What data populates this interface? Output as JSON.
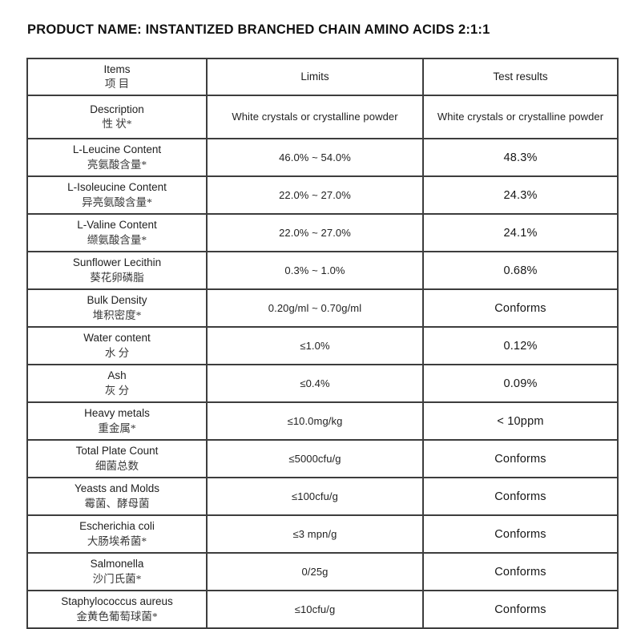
{
  "page": {
    "title": "PRODUCT NAME: INSTANTIZED BRANCHED CHAIN AMINO ACIDS 2:1:1"
  },
  "colors": {
    "text": "#1f1f1f",
    "border": "#3d3d3d",
    "background": "#ffffff"
  },
  "table": {
    "header": {
      "items_en": "Items",
      "items_zh": "项 目",
      "limits": "Limits",
      "test_results": "Test results"
    },
    "rows": [
      {
        "item_en": "Description",
        "item_zh": "性 状*",
        "limit": "White crystals or crystalline powder",
        "result": "White crystals or crystalline powder"
      },
      {
        "item_en": "L-Leucine Content",
        "item_zh": "亮氨酸含量*",
        "limit": "46.0% ~ 54.0%",
        "result": "48.3%"
      },
      {
        "item_en": "L-Isoleucine Content",
        "item_zh": "异亮氨酸含量*",
        "limit": "22.0% ~ 27.0%",
        "result": "24.3%"
      },
      {
        "item_en": "L-Valine Content",
        "item_zh": "缬氨酸含量*",
        "limit": "22.0% ~ 27.0%",
        "result": "24.1%"
      },
      {
        "item_en": "Sunflower Lecithin",
        "item_zh": "葵花卵磷脂",
        "limit": "0.3% ~ 1.0%",
        "result": "0.68%"
      },
      {
        "item_en": "Bulk Density",
        "item_zh": "堆积密度*",
        "limit": "0.20g/ml ~ 0.70g/ml",
        "result": "Conforms"
      },
      {
        "item_en": "Water content",
        "item_zh": "水 分",
        "limit": "≤1.0%",
        "result": "0.12%"
      },
      {
        "item_en": "Ash",
        "item_zh": "灰 分",
        "limit": "≤0.4%",
        "result": "0.09%"
      },
      {
        "item_en": "Heavy metals",
        "item_zh": "重金属*",
        "limit": "≤10.0mg/kg",
        "result": "< 10ppm"
      },
      {
        "item_en": "Total Plate Count",
        "item_zh": "细菌总数",
        "limit": "≤5000cfu/g",
        "result": "Conforms"
      },
      {
        "item_en": "Yeasts and Molds",
        "item_zh": "霉菌、酵母菌",
        "limit": "≤100cfu/g",
        "result": "Conforms"
      },
      {
        "item_en": "Escherichia coli",
        "item_zh": "大肠埃希菌*",
        "limit": "≤3 mpn/g",
        "result": "Conforms"
      },
      {
        "item_en": "Salmonella",
        "item_zh": "沙门氏菌*",
        "limit": "0/25g",
        "result": "Conforms"
      },
      {
        "item_en": "Staphylococcus aureus",
        "item_zh": "金黄色葡萄球菌*",
        "limit": "≤10cfu/g",
        "result": "Conforms"
      }
    ]
  }
}
